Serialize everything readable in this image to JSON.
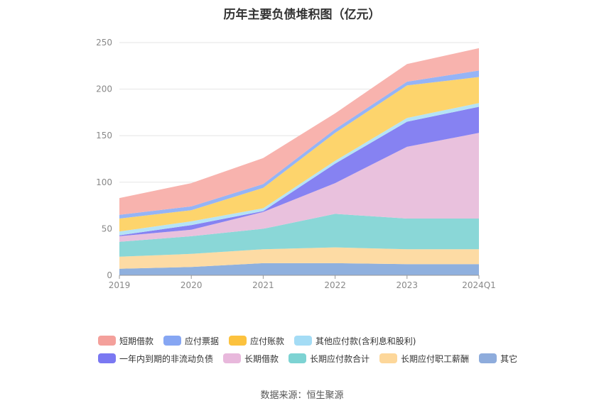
{
  "title": "历年主要负债堆积图（亿元）",
  "source": "数据来源：恒生聚源",
  "chart_data": {
    "type": "area",
    "stacked": true,
    "x": [
      "2019",
      "2020",
      "2021",
      "2022",
      "2023",
      "2024Q1"
    ],
    "ylim": [
      0,
      250
    ],
    "yticks": [
      0,
      50,
      100,
      150,
      200,
      250
    ],
    "grid": true,
    "legend_position": "bottom",
    "series": [
      {
        "name": "其它",
        "color": "#8fb0de",
        "values": [
          7,
          9,
          13,
          13,
          12,
          12
        ]
      },
      {
        "name": "长期应付职工薪酬",
        "color": "#fddba4",
        "values": [
          13,
          14,
          15,
          17,
          16,
          16
        ]
      },
      {
        "name": "长期应付款合计",
        "color": "#8ad7d7",
        "values": [
          16,
          19,
          22,
          36,
          33,
          33
        ]
      },
      {
        "name": "长期借款",
        "color": "#e9c1dd",
        "values": [
          6,
          7,
          18,
          33,
          77,
          92
        ]
      },
      {
        "name": "一年内到期的非流动负债",
        "color": "#8682f2",
        "values": [
          1,
          5,
          1,
          21,
          27,
          28
        ]
      },
      {
        "name": "其他应付款(含利息和股利)",
        "color": "#b5e3f6",
        "values": [
          4,
          4,
          3,
          3,
          4,
          4
        ]
      },
      {
        "name": "应付账款",
        "color": "#fdd46c",
        "values": [
          14,
          12,
          22,
          30,
          35,
          28
        ]
      },
      {
        "name": "应付票据",
        "color": "#95b4f6",
        "values": [
          4,
          4,
          4,
          4,
          4,
          7
        ]
      },
      {
        "name": "短期借款",
        "color": "#f8b3ae",
        "values": [
          18,
          25,
          28,
          17,
          19,
          24
        ]
      }
    ]
  },
  "legend_rows": [
    [
      {
        "name": "短期借款",
        "color": "#f4a09b"
      },
      {
        "name": "应付票据",
        "color": "#86a6f3"
      },
      {
        "name": "应付账款",
        "color": "#fcc23e"
      },
      {
        "name": "其他应付款(含利息和股利)",
        "color": "#a4dcf5"
      }
    ],
    [
      {
        "name": "一年内到期的非流动负债",
        "color": "#7a78f2"
      },
      {
        "name": "长期借款",
        "color": "#e8b8dc"
      },
      {
        "name": "长期应付款合计",
        "color": "#7dd3d3"
      },
      {
        "name": "长期应付职工薪酬",
        "color": "#fdd79a"
      },
      {
        "name": "其它",
        "color": "#8eacdc"
      }
    ]
  ]
}
